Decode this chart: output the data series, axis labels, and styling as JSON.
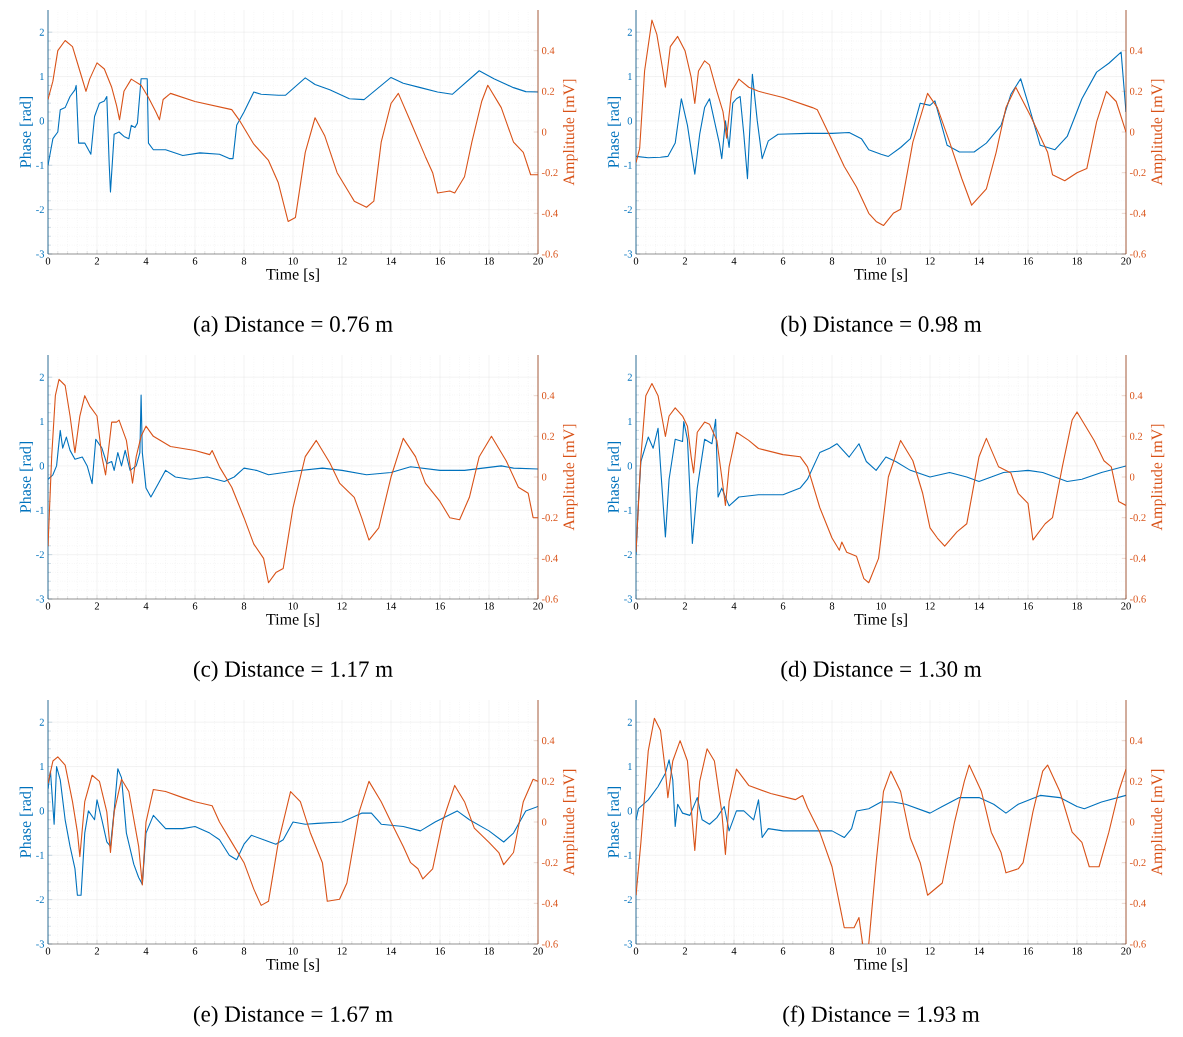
{
  "chart_data": [
    {
      "type": "line",
      "title": "(a) Distance = 0.76 m",
      "xlabel": "Time [s]",
      "ylabel": "Phase [rad]",
      "y2label": "Amplitude [mV]",
      "xlim": [
        0,
        20
      ],
      "ylim": [
        -3,
        2.5
      ],
      "y2lim": [
        -0.6,
        0.6
      ],
      "xticks": [
        0,
        2,
        4,
        6,
        8,
        10,
        12,
        14,
        16,
        18,
        20
      ],
      "yticks": [
        -3,
        -2,
        -1,
        0,
        1,
        2
      ],
      "y2ticks": [
        -0.6,
        -0.4,
        -0.2,
        0,
        0.2,
        0.4
      ],
      "grid": true,
      "series": [
        {
          "color": "#0072bd",
          "axis": "y",
          "x": [
            0,
            0.2,
            0.4,
            0.5,
            0.7,
            0.9,
            1.1,
            1.15,
            1.25,
            1.5,
            1.75,
            1.9,
            2.1,
            2.3,
            2.4,
            2.5,
            2.55,
            2.7,
            2.9,
            3.1,
            3.3,
            3.4,
            3.55,
            3.65,
            3.8,
            4.05,
            4.1,
            4.3,
            4.8,
            5.5,
            6.2,
            7,
            7.4,
            7.55,
            7.7,
            8,
            8.4,
            8.7,
            9.4,
            9.7,
            10.5,
            10.9,
            11.5,
            12.3,
            12.9,
            14,
            14.5,
            15.2,
            15.9,
            16.5,
            17.6,
            18.2,
            19,
            19.5,
            20
          ],
          "values": [
            -1.0,
            -0.4,
            -0.25,
            0.25,
            0.3,
            0.55,
            0.7,
            0.8,
            -0.5,
            -0.5,
            -0.75,
            0.1,
            0.4,
            0.45,
            0.55,
            -1.0,
            -1.6,
            -0.3,
            -0.25,
            -0.35,
            -0.4,
            -0.1,
            -0.15,
            -0.05,
            0.95,
            0.95,
            -0.5,
            -0.65,
            -0.65,
            -0.78,
            -0.72,
            -0.75,
            -0.85,
            -0.85,
            -0.1,
            0.2,
            0.65,
            0.6,
            0.58,
            0.58,
            0.97,
            0.82,
            0.7,
            0.5,
            0.48,
            0.98,
            0.85,
            0.75,
            0.65,
            0.6,
            1.13,
            0.95,
            0.75,
            0.66,
            0.65
          ]
        },
        {
          "color": "#d95319",
          "axis": "y2",
          "x": [
            0,
            0.2,
            0.4,
            0.7,
            1.0,
            1.3,
            1.55,
            1.7,
            2.0,
            2.3,
            2.6,
            2.8,
            2.92,
            3.1,
            3.4,
            3.8,
            4.1,
            4.4,
            4.55,
            4.7,
            5.0,
            5.5,
            6.0,
            7.5,
            7.8,
            8.4,
            9.0,
            9.4,
            9.8,
            10.1,
            10.5,
            10.9,
            11.3,
            11.8,
            12.3,
            12.5,
            13.0,
            13.3,
            13.6,
            14.0,
            14.3,
            14.8,
            15.4,
            15.7,
            15.9,
            16.4,
            16.6,
            17.0,
            17.3,
            17.7,
            17.95,
            18.5,
            19.0,
            19.4,
            19.7,
            20
          ],
          "values": [
            0.16,
            0.25,
            0.4,
            0.45,
            0.42,
            0.3,
            0.2,
            0.26,
            0.34,
            0.31,
            0.22,
            0.13,
            0.06,
            0.2,
            0.26,
            0.23,
            0.17,
            0.1,
            0.06,
            0.16,
            0.19,
            0.17,
            0.15,
            0.11,
            0.06,
            -0.06,
            -0.14,
            -0.25,
            -0.44,
            -0.42,
            -0.1,
            0.07,
            -0.02,
            -0.2,
            -0.3,
            -0.34,
            -0.37,
            -0.34,
            -0.05,
            0.14,
            0.19,
            0.05,
            -0.12,
            -0.2,
            -0.3,
            -0.29,
            -0.3,
            -0.22,
            -0.05,
            0.15,
            0.23,
            0.12,
            -0.05,
            -0.1,
            -0.21,
            -0.21
          ]
        }
      ]
    },
    {
      "type": "line",
      "title": "(b) Distance = 0.98 m",
      "xlabel": "Time [s]",
      "ylabel": "Phase [rad]",
      "y2label": "Amplitude [mV]",
      "xlim": [
        0,
        20
      ],
      "ylim": [
        -3,
        2.5
      ],
      "y2lim": [
        -0.6,
        0.6
      ],
      "xticks": [
        0,
        2,
        4,
        6,
        8,
        10,
        12,
        14,
        16,
        18,
        20
      ],
      "yticks": [
        -3,
        -2,
        -1,
        0,
        1,
        2
      ],
      "y2ticks": [
        -0.6,
        -0.4,
        -0.2,
        0,
        0.2,
        0.4
      ],
      "grid": true,
      "series": [
        {
          "color": "#0072bd",
          "axis": "y",
          "x": [
            0,
            0.5,
            1.0,
            1.3,
            1.6,
            1.85,
            2.1,
            2.4,
            2.6,
            2.8,
            3.0,
            3.2,
            3.4,
            3.5,
            3.65,
            3.8,
            3.95,
            4.1,
            4.25,
            4.4,
            4.55,
            4.75,
            4.95,
            5.15,
            5.4,
            5.8,
            7,
            8,
            8.7,
            9.2,
            9.5,
            10.0,
            10.3,
            10.8,
            11.2,
            11.6,
            12.0,
            12.2,
            12.7,
            13.2,
            13.8,
            14.3,
            14.9,
            15.3,
            15.7,
            16.0,
            16.5,
            17.1,
            17.6,
            18.2,
            18.8,
            19.3,
            19.8,
            20
          ],
          "values": [
            -0.8,
            -0.83,
            -0.82,
            -0.8,
            -0.5,
            0.5,
            -0.1,
            -1.2,
            -0.3,
            0.3,
            0.5,
            0.0,
            -0.5,
            -0.85,
            0.0,
            -0.6,
            0.4,
            0.5,
            0.55,
            -0.3,
            -1.3,
            1.05,
            0.0,
            -0.85,
            -0.45,
            -0.3,
            -0.28,
            -0.28,
            -0.26,
            -0.4,
            -0.65,
            -0.75,
            -0.8,
            -0.6,
            -0.4,
            0.4,
            0.35,
            0.45,
            -0.55,
            -0.7,
            -0.7,
            -0.5,
            -0.1,
            0.6,
            0.95,
            0.4,
            -0.55,
            -0.65,
            -0.35,
            0.5,
            1.1,
            1.3,
            1.55,
            0.2
          ]
        },
        {
          "color": "#d95319",
          "axis": "y2",
          "x": [
            0,
            0.15,
            0.35,
            0.65,
            0.85,
            1.1,
            1.2,
            1.4,
            1.7,
            2.0,
            2.25,
            2.4,
            2.55,
            2.8,
            3.0,
            3.3,
            3.55,
            3.7,
            3.9,
            4.2,
            4.6,
            5.0,
            6.0,
            7.2,
            7.4,
            8.0,
            8.5,
            9.0,
            9.5,
            9.8,
            10.1,
            10.5,
            10.8,
            11.3,
            11.9,
            12.3,
            12.8,
            13.3,
            13.7,
            14.3,
            14.7,
            15.1,
            15.5,
            16.1,
            16.8,
            17.0,
            17.5,
            18.0,
            18.4,
            18.8,
            19.2,
            19.6,
            20
          ],
          "values": [
            -0.15,
            -0.08,
            0.3,
            0.55,
            0.48,
            0.3,
            0.22,
            0.42,
            0.47,
            0.4,
            0.27,
            0.14,
            0.3,
            0.35,
            0.33,
            0.2,
            0.1,
            -0.03,
            0.2,
            0.26,
            0.22,
            0.2,
            0.17,
            0.12,
            0.11,
            -0.04,
            -0.17,
            -0.27,
            -0.4,
            -0.44,
            -0.46,
            -0.4,
            -0.38,
            -0.05,
            0.19,
            0.12,
            -0.05,
            -0.23,
            -0.36,
            -0.28,
            -0.1,
            0.12,
            0.22,
            0.08,
            -0.1,
            -0.21,
            -0.24,
            -0.2,
            -0.18,
            0.05,
            0.2,
            0.15,
            0.0
          ]
        }
      ]
    },
    {
      "type": "line",
      "title": "(c) Distance = 1.17 m",
      "xlabel": "Time [s]",
      "ylabel": "Phase [rad]",
      "y2label": "Amplitude [mV]",
      "xlim": [
        0,
        20
      ],
      "ylim": [
        -3,
        2.5
      ],
      "y2lim": [
        -0.6,
        0.6
      ],
      "xticks": [
        0,
        2,
        4,
        6,
        8,
        10,
        12,
        14,
        16,
        18,
        20
      ],
      "yticks": [
        -3,
        -2,
        -1,
        0,
        1,
        2
      ],
      "y2ticks": [
        -0.6,
        -0.4,
        -0.2,
        0,
        0.2,
        0.4
      ],
      "grid": true,
      "series": [
        {
          "color": "#0072bd",
          "axis": "y",
          "x": [
            0,
            0.2,
            0.35,
            0.5,
            0.6,
            0.75,
            0.9,
            1.1,
            1.4,
            1.6,
            1.8,
            1.95,
            2.2,
            2.4,
            2.6,
            2.7,
            2.85,
            3.0,
            3.15,
            3.35,
            3.6,
            3.75,
            3.8,
            3.85,
            4.0,
            4.2,
            4.5,
            4.8,
            5.2,
            5.8,
            6.5,
            7.2,
            7.6,
            8.0,
            8.5,
            9.0,
            10,
            11.2,
            12,
            13,
            14,
            14.8,
            16,
            17,
            18.5,
            19,
            20
          ],
          "values": [
            -0.3,
            -0.2,
            0.0,
            0.8,
            0.4,
            0.65,
            0.35,
            0.15,
            0.2,
            0.0,
            -0.4,
            0.6,
            0.4,
            0.05,
            0.1,
            -0.1,
            0.3,
            0.0,
            0.35,
            -0.1,
            0.0,
            0.3,
            1.6,
            0.3,
            -0.5,
            -0.7,
            -0.4,
            -0.1,
            -0.25,
            -0.3,
            -0.25,
            -0.35,
            -0.25,
            -0.05,
            -0.1,
            -0.2,
            -0.12,
            -0.05,
            -0.1,
            -0.2,
            -0.15,
            -0.02,
            -0.1,
            -0.1,
            0.0,
            -0.05,
            -0.07
          ]
        },
        {
          "color": "#d95319",
          "axis": "y2",
          "x": [
            0,
            0.15,
            0.3,
            0.45,
            0.7,
            0.9,
            1.1,
            1.3,
            1.5,
            1.7,
            2.0,
            2.2,
            2.35,
            2.6,
            2.8,
            2.9,
            3.2,
            3.45,
            3.6,
            3.8,
            4.0,
            4.3,
            5.0,
            6.0,
            6.6,
            6.7,
            7.0,
            7.5,
            8.0,
            8.4,
            8.8,
            9.0,
            9.3,
            9.6,
            10,
            10.5,
            10.95,
            11.5,
            11.9,
            12.5,
            12.8,
            13.1,
            13.5,
            14.0,
            14.5,
            15.0,
            15.4,
            16.0,
            16.4,
            16.8,
            17.2,
            17.6,
            18.1,
            18.7,
            19.2,
            19.6,
            19.8,
            20
          ],
          "values": [
            -0.34,
            0.1,
            0.4,
            0.48,
            0.45,
            0.3,
            0.12,
            0.3,
            0.4,
            0.35,
            0.3,
            0.1,
            0.01,
            0.27,
            0.27,
            0.28,
            0.18,
            -0.03,
            0.1,
            0.2,
            0.25,
            0.2,
            0.15,
            0.13,
            0.11,
            0.13,
            0.05,
            -0.05,
            -0.2,
            -0.33,
            -0.4,
            -0.52,
            -0.47,
            -0.45,
            -0.15,
            0.1,
            0.18,
            0.07,
            -0.03,
            -0.1,
            -0.2,
            -0.31,
            -0.25,
            0.0,
            0.19,
            0.1,
            -0.03,
            -0.12,
            -0.2,
            -0.21,
            -0.1,
            0.1,
            0.2,
            0.08,
            -0.05,
            -0.08,
            -0.2,
            -0.2
          ]
        }
      ]
    },
    {
      "type": "line",
      "title": "(d) Distance = 1.30 m",
      "xlabel": "Time [s]",
      "ylabel": "Phase [rad]",
      "y2label": "Amplitude [mV]",
      "xlim": [
        0,
        20
      ],
      "ylim": [
        -3,
        2.5
      ],
      "y2lim": [
        -0.6,
        0.6
      ],
      "xticks": [
        0,
        2,
        4,
        6,
        8,
        10,
        12,
        14,
        16,
        18,
        20
      ],
      "yticks": [
        -3,
        -2,
        -1,
        0,
        1,
        2
      ],
      "y2ticks": [
        -0.6,
        -0.4,
        -0.2,
        0,
        0.2,
        0.4
      ],
      "grid": true,
      "series": [
        {
          "color": "#0072bd",
          "axis": "y",
          "x": [
            0,
            0.1,
            0.2,
            0.5,
            0.7,
            0.9,
            1.0,
            1.2,
            1.35,
            1.6,
            1.9,
            1.95,
            2.1,
            2.3,
            2.5,
            2.8,
            3.1,
            3.25,
            3.35,
            3.5,
            3.8,
            4.2,
            5,
            6,
            6.7,
            7.0,
            7.5,
            7.9,
            8.2,
            8.7,
            9.1,
            9.4,
            9.8,
            10.2,
            10.6,
            11.2,
            12,
            12.8,
            13.5,
            14.0,
            15,
            16,
            16.6,
            17.6,
            18.2,
            19,
            20
          ],
          "values": [
            -2.0,
            -0.8,
            0.1,
            0.65,
            0.4,
            0.85,
            0.0,
            -1.6,
            -0.3,
            0.6,
            0.55,
            1.0,
            0.6,
            -1.75,
            -0.5,
            0.6,
            0.5,
            1.05,
            -0.7,
            -0.5,
            -0.9,
            -0.7,
            -0.65,
            -0.65,
            -0.5,
            -0.3,
            0.3,
            0.4,
            0.5,
            0.2,
            0.5,
            0.1,
            -0.1,
            0.2,
            0.1,
            -0.1,
            -0.25,
            -0.15,
            -0.25,
            -0.35,
            -0.15,
            -0.1,
            -0.15,
            -0.35,
            -0.3,
            -0.15,
            0.0
          ]
        },
        {
          "color": "#d95319",
          "axis": "y2",
          "x": [
            0,
            0.2,
            0.4,
            0.65,
            0.9,
            1.05,
            1.2,
            1.35,
            1.6,
            1.9,
            2.1,
            2.25,
            2.35,
            2.5,
            2.8,
            3.0,
            3.3,
            3.5,
            3.65,
            3.8,
            4.1,
            4.6,
            5.0,
            6.0,
            6.7,
            7.0,
            7.5,
            8.0,
            8.3,
            8.4,
            8.6,
            9.0,
            9.3,
            9.5,
            9.9,
            10.3,
            10.8,
            11.3,
            11.7,
            12.0,
            12.3,
            12.6,
            13.1,
            13.5,
            14.0,
            14.3,
            14.8,
            15.3,
            15.6,
            16.0,
            16.2,
            16.7,
            17.0,
            17.4,
            17.8,
            18.0,
            18.7,
            19.1,
            19.4,
            19.7,
            20
          ],
          "values": [
            -0.37,
            0.1,
            0.4,
            0.46,
            0.4,
            0.3,
            0.2,
            0.3,
            0.34,
            0.3,
            0.25,
            0.1,
            0.02,
            0.22,
            0.27,
            0.26,
            0.18,
            0.0,
            -0.14,
            0.05,
            0.22,
            0.18,
            0.14,
            0.11,
            0.1,
            0.05,
            -0.15,
            -0.3,
            -0.36,
            -0.32,
            -0.37,
            -0.39,
            -0.5,
            -0.52,
            -0.4,
            0.0,
            0.18,
            0.08,
            -0.08,
            -0.25,
            -0.3,
            -0.34,
            -0.27,
            -0.23,
            0.1,
            0.19,
            0.05,
            0.02,
            -0.08,
            -0.13,
            -0.31,
            -0.23,
            -0.2,
            0.05,
            0.28,
            0.32,
            0.18,
            0.08,
            0.05,
            -0.12,
            -0.14
          ]
        }
      ]
    },
    {
      "type": "line",
      "title": "(e) Distance = 1.67 m",
      "xlabel": "Time [s]",
      "ylabel": "Phase [rad]",
      "y2label": "Amplitude [mV]",
      "xlim": [
        0,
        20
      ],
      "ylim": [
        -3,
        2.5
      ],
      "y2lim": [
        -0.6,
        0.6
      ],
      "xticks": [
        0,
        2,
        4,
        6,
        8,
        10,
        12,
        14,
        16,
        18,
        20
      ],
      "yticks": [
        -3,
        -2,
        -1,
        0,
        1,
        2
      ],
      "y2ticks": [
        -0.6,
        -0.4,
        -0.2,
        0,
        0.2,
        0.4
      ],
      "grid": true,
      "series": [
        {
          "color": "#0072bd",
          "axis": "y",
          "x": [
            0,
            0.1,
            0.25,
            0.35,
            0.5,
            0.7,
            0.9,
            1.1,
            1.2,
            1.35,
            1.5,
            1.65,
            1.9,
            2.0,
            2.2,
            2.4,
            2.55,
            2.7,
            2.85,
            3.0,
            3.2,
            3.5,
            3.7,
            3.85,
            4.0,
            4.3,
            4.8,
            5.5,
            6.0,
            6.6,
            7.0,
            7.4,
            7.7,
            8.0,
            8.3,
            8.8,
            9.3,
            9.6,
            10.0,
            10.5,
            11,
            12,
            12.8,
            13.2,
            13.6,
            14.5,
            15.2,
            15.8,
            16.7,
            17.2,
            18,
            18.6,
            19,
            19.5,
            20
          ],
          "values": [
            0.5,
            0.9,
            -0.3,
            1.0,
            0.7,
            -0.2,
            -0.8,
            -1.3,
            -1.9,
            -1.9,
            -0.5,
            0.0,
            -0.2,
            0.25,
            -0.2,
            -0.7,
            -0.8,
            0.0,
            0.95,
            0.75,
            -0.5,
            -1.2,
            -1.5,
            -1.65,
            -0.5,
            -0.1,
            -0.4,
            -0.4,
            -0.35,
            -0.5,
            -0.65,
            -1.0,
            -1.1,
            -0.75,
            -0.55,
            -0.65,
            -0.75,
            -0.65,
            -0.25,
            -0.3,
            -0.28,
            -0.25,
            -0.05,
            -0.05,
            -0.3,
            -0.35,
            -0.45,
            -0.25,
            0.0,
            -0.2,
            -0.45,
            -0.7,
            -0.5,
            0.0,
            0.1
          ]
        },
        {
          "color": "#d95319",
          "axis": "y2",
          "x": [
            0,
            0.2,
            0.4,
            0.7,
            1.0,
            1.2,
            1.3,
            1.5,
            1.8,
            2.1,
            2.4,
            2.55,
            2.7,
            3.0,
            3.3,
            3.7,
            3.85,
            4.0,
            4.3,
            4.8,
            5.5,
            6.0,
            6.7,
            7.0,
            7.5,
            8.0,
            8.4,
            8.7,
            9.0,
            9.4,
            9.9,
            10.3,
            10.7,
            11.2,
            11.4,
            11.9,
            12.2,
            12.7,
            13.1,
            13.6,
            14.0,
            14.5,
            14.8,
            15.1,
            15.3,
            15.7,
            16.1,
            16.6,
            17.0,
            17.4,
            18.0,
            18.4,
            18.6,
            19.0,
            19.4,
            19.8,
            20
          ],
          "values": [
            0.19,
            0.3,
            0.32,
            0.28,
            0.1,
            -0.05,
            -0.17,
            0.1,
            0.23,
            0.2,
            0.05,
            -0.15,
            0.05,
            0.21,
            0.15,
            -0.12,
            -0.31,
            0.0,
            0.16,
            0.15,
            0.12,
            0.1,
            0.08,
            0.0,
            -0.1,
            -0.2,
            -0.33,
            -0.41,
            -0.39,
            -0.1,
            0.15,
            0.1,
            -0.05,
            -0.2,
            -0.39,
            -0.38,
            -0.3,
            0.05,
            0.2,
            0.1,
            0.0,
            -0.12,
            -0.2,
            -0.23,
            -0.28,
            -0.23,
            0.0,
            0.18,
            0.1,
            -0.03,
            -0.1,
            -0.15,
            -0.21,
            -0.15,
            0.1,
            0.21,
            0.2
          ]
        }
      ]
    },
    {
      "type": "line",
      "title": "(f) Distance = 1.93 m",
      "xlabel": "Time [s]",
      "ylabel": "Phase [rad]",
      "y2label": "Amplitude [mV]",
      "xlim": [
        0,
        20
      ],
      "ylim": [
        -3,
        2.5
      ],
      "y2lim": [
        -0.6,
        0.6
      ],
      "xticks": [
        0,
        2,
        4,
        6,
        8,
        10,
        12,
        14,
        16,
        18,
        20
      ],
      "yticks": [
        -3,
        -2,
        -1,
        0,
        1,
        2
      ],
      "y2ticks": [
        -0.6,
        -0.4,
        -0.2,
        0,
        0.2,
        0.4
      ],
      "grid": true,
      "series": [
        {
          "color": "#0072bd",
          "axis": "y",
          "x": [
            0,
            0.1,
            0.5,
            0.9,
            1.2,
            1.35,
            1.5,
            1.6,
            1.7,
            1.9,
            2.2,
            2.5,
            2.7,
            3.0,
            3.3,
            3.6,
            3.8,
            4.1,
            4.4,
            4.8,
            5.0,
            5.15,
            5.4,
            6,
            7,
            8,
            8.5,
            8.8,
            9.0,
            9.5,
            10,
            10.5,
            11,
            12,
            12.5,
            13.2,
            14,
            14.6,
            15.1,
            15.6,
            16.5,
            17.3,
            18.0,
            18.3,
            19,
            20
          ],
          "values": [
            -0.2,
            0.05,
            0.25,
            0.55,
            0.85,
            1.15,
            0.7,
            -0.35,
            0.15,
            -0.05,
            -0.1,
            0.3,
            -0.2,
            -0.3,
            -0.15,
            0.1,
            -0.45,
            0.0,
            0.0,
            -0.2,
            0.25,
            -0.6,
            -0.4,
            -0.45,
            -0.45,
            -0.45,
            -0.6,
            -0.4,
            0.0,
            0.05,
            0.2,
            0.2,
            0.15,
            -0.05,
            0.1,
            0.3,
            0.3,
            0.15,
            -0.05,
            0.15,
            0.35,
            0.3,
            0.1,
            0.05,
            0.2,
            0.35
          ]
        },
        {
          "color": "#d95319",
          "axis": "y2",
          "x": [
            0,
            0.2,
            0.5,
            0.75,
            1.0,
            1.2,
            1.3,
            1.5,
            1.8,
            2.1,
            2.3,
            2.4,
            2.6,
            2.9,
            3.2,
            3.5,
            3.65,
            3.8,
            4.1,
            4.6,
            5.5,
            6.5,
            6.8,
            7.0,
            7.5,
            8.0,
            8.3,
            8.5,
            8.9,
            9.1,
            9.25,
            9.35,
            9.5,
            9.8,
            10.1,
            10.4,
            10.8,
            11.2,
            11.6,
            11.9,
            12.5,
            13.0,
            13.4,
            13.6,
            14.1,
            14.5,
            14.9,
            15.1,
            15.6,
            15.8,
            16.2,
            16.6,
            16.8,
            17.3,
            17.8,
            18.2,
            18.5,
            18.9,
            19.3,
            19.7,
            20
          ],
          "values": [
            -0.36,
            -0.1,
            0.35,
            0.51,
            0.45,
            0.25,
            0.12,
            0.3,
            0.4,
            0.3,
            0.0,
            -0.14,
            0.2,
            0.36,
            0.3,
            0.05,
            -0.16,
            0.1,
            0.26,
            0.18,
            0.14,
            0.11,
            0.13,
            0.07,
            -0.05,
            -0.22,
            -0.4,
            -0.52,
            -0.52,
            -0.47,
            -0.6,
            null,
            -0.6,
            -0.2,
            0.15,
            0.25,
            0.15,
            -0.08,
            -0.2,
            -0.36,
            -0.3,
            0.0,
            0.2,
            0.28,
            0.15,
            -0.05,
            -0.15,
            -0.25,
            -0.23,
            -0.2,
            0.05,
            0.25,
            0.28,
            0.15,
            -0.05,
            -0.1,
            -0.22,
            -0.22,
            -0.05,
            0.15,
            0.26
          ]
        }
      ]
    }
  ]
}
